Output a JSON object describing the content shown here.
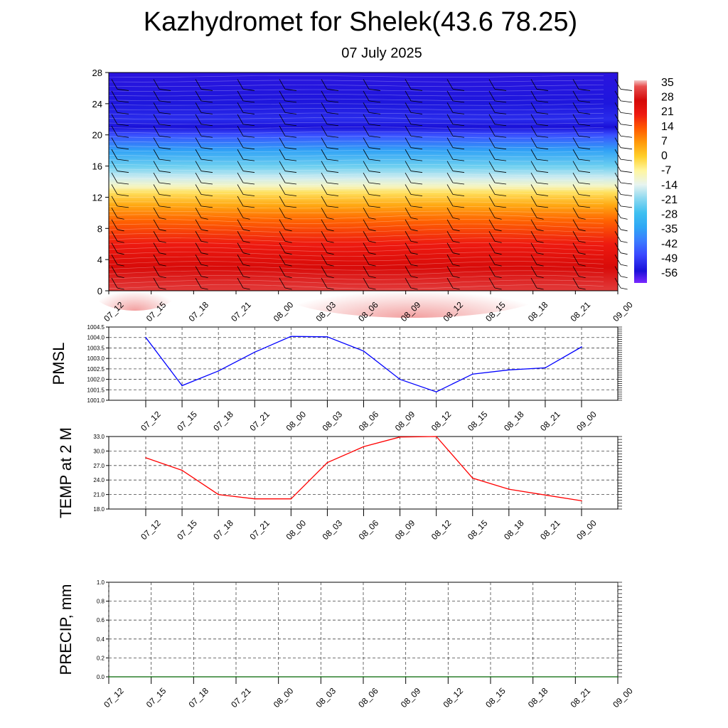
{
  "title": "Kazhydromet for Shelek(43.6 78.25)",
  "subtitle": "07 July 2025",
  "colors": {
    "pmsl_line": "#0000ff",
    "temp_line": "#ff0000",
    "precip_line": "#006400",
    "grid": "#444444"
  },
  "chart_data": [
    {
      "id": "cross-section",
      "type": "heatmap",
      "title": "",
      "xlabel": "",
      "ylabel": "",
      "x_ticks": [
        "07_12",
        "07_15",
        "07_18",
        "07_21",
        "08_00",
        "08_03",
        "08_06",
        "08_09",
        "08_12",
        "08_15",
        "08_18",
        "08_21",
        "09_00"
      ],
      "y_ticks": [
        0,
        4,
        8,
        12,
        16,
        20,
        24,
        28
      ],
      "ylim": [
        0,
        28
      ],
      "colorbar_labels": [
        "35",
        "28",
        "21",
        "14",
        "7",
        "0",
        "-7",
        "-14",
        "-21",
        "-28",
        "-35",
        "-42",
        "-49",
        "-56"
      ],
      "colorbar_range": [
        -63,
        38
      ],
      "overlay": "wind barbs and white contour lines",
      "values_by_height": [
        {
          "height": 0,
          "value": 33
        },
        {
          "height": 3,
          "value": 27
        },
        {
          "height": 6,
          "value": 21
        },
        {
          "height": 9,
          "value": 13
        },
        {
          "height": 11,
          "value": 5
        },
        {
          "height": 12.6,
          "value": -3
        },
        {
          "height": 13.4,
          "value": -10
        },
        {
          "height": 14.5,
          "value": -16
        },
        {
          "height": 16,
          "value": -24
        },
        {
          "height": 18,
          "value": -36
        },
        {
          "height": 20,
          "value": -48
        },
        {
          "height": 21,
          "value": -57
        },
        {
          "height": 22,
          "value": -53
        },
        {
          "height": 24,
          "value": -56
        },
        {
          "height": 28,
          "value": -58
        }
      ]
    },
    {
      "id": "pmsl",
      "type": "line",
      "ylabel": "PMSL",
      "categories": [
        "07_12",
        "07_15",
        "07_18",
        "07_21",
        "08_00",
        "08_03",
        "08_06",
        "08_09",
        "08_12",
        "08_15",
        "08_18",
        "08_21",
        "09_00"
      ],
      "values": [
        1004.0,
        1001.7,
        1002.4,
        1003.3,
        1004.05,
        1004.03,
        1003.35,
        1002.0,
        1001.4,
        1002.25,
        1002.45,
        1002.55,
        1003.55
      ],
      "ylim": [
        1001.0,
        1004.5
      ],
      "y_ticks": [
        "1001.0",
        "1001.5",
        "1002.0",
        "1002.5",
        "1003.0",
        "1003.5",
        "1004.0",
        "1004.5"
      ]
    },
    {
      "id": "temp",
      "type": "line",
      "ylabel": "TEMP at 2 M",
      "categories": [
        "07_12",
        "07_15",
        "07_18",
        "07_21",
        "08_00",
        "08_03",
        "08_06",
        "08_09",
        "08_12",
        "08_15",
        "08_18",
        "08_21",
        "09_00"
      ],
      "values": [
        28.6,
        26.0,
        21.0,
        20.1,
        20.1,
        27.6,
        30.9,
        32.9,
        33.0,
        24.4,
        22.1,
        20.9,
        19.7
      ],
      "ylim": [
        18.0,
        33.0
      ],
      "y_ticks": [
        "18.0",
        "21.0",
        "24.0",
        "27.0",
        "30.0",
        "33.0"
      ]
    },
    {
      "id": "precip",
      "type": "line",
      "ylabel": "PRECIP, mm",
      "categories": [
        "07_12",
        "07_15",
        "07_18",
        "07_21",
        "08_00",
        "08_03",
        "08_06",
        "08_09",
        "08_12",
        "08_15",
        "08_18",
        "08_21",
        "09_00"
      ],
      "values": [
        0,
        0,
        0,
        0,
        0,
        0,
        0,
        0,
        0,
        0,
        0,
        0,
        0
      ],
      "ylim": [
        0,
        1.0
      ],
      "y_ticks": [
        "0.0",
        "0.2",
        "0.4",
        "0.6",
        "0.8",
        "1.0"
      ]
    }
  ]
}
